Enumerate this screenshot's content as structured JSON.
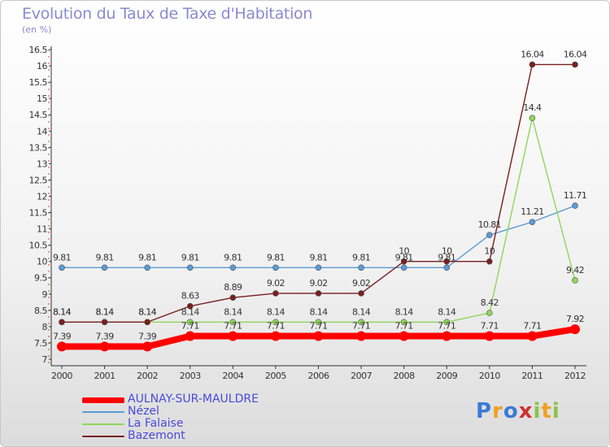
{
  "title": "Evolution du Taux de Taxe d'Habitation",
  "subtitle": "(en %)",
  "brand": "Proxiti",
  "chart_data": {
    "type": "line",
    "x": [
      "2000",
      "2001",
      "2002",
      "2003",
      "2004",
      "2005",
      "2006",
      "2007",
      "2008",
      "2009",
      "2010",
      "2011",
      "2012"
    ],
    "ylim": [
      7,
      16.5
    ],
    "yticks": [
      "7",
      "7.5",
      "8",
      "8.5",
      "9",
      "9.5",
      "10",
      "10.5",
      "11",
      "11.5",
      "12",
      "12.5",
      "13",
      "13.5",
      "14",
      "14.5",
      "15",
      "15.5",
      "16",
      "16.5"
    ],
    "grid": false,
    "legend_position": "bottom-left",
    "series": [
      {
        "name": "AULNAY-SUR-MAULDRE",
        "color": "#ff0000",
        "values": [
          7.39,
          7.39,
          7.39,
          7.71,
          7.71,
          7.71,
          7.71,
          7.71,
          7.71,
          7.71,
          7.71,
          7.71,
          7.92
        ],
        "labels": [
          "7.39",
          "7.39",
          "7.39",
          "7.71",
          "7.71",
          "7.71",
          "7.71",
          "7.71",
          "7.71",
          "7.71",
          "7.71",
          "7.71",
          "7.92"
        ]
      },
      {
        "name": "Nézel",
        "color": "#5b9bd5",
        "values": [
          9.81,
          9.81,
          9.81,
          9.81,
          9.81,
          9.81,
          9.81,
          9.81,
          9.81,
          9.81,
          10.81,
          11.21,
          11.71
        ],
        "labels": [
          "9.81",
          "9.81",
          "9.81",
          "9.81",
          "9.81",
          "9.81",
          "9.81",
          "9.81",
          "9.81",
          "9.81",
          "10.81",
          "11.21",
          "11.71"
        ]
      },
      {
        "name": "La Falaise",
        "color": "#8fd65a",
        "values": [
          8.14,
          8.14,
          8.14,
          8.14,
          8.14,
          8.14,
          8.14,
          8.14,
          8.14,
          8.14,
          8.42,
          14.4,
          9.42
        ],
        "labels": [
          "8.14",
          "8.14",
          "8.14",
          "8.14",
          "8.14",
          "8.14",
          "8.14",
          "8.14",
          "8.14",
          "8.14",
          "8.42",
          "14.4",
          "9.42"
        ]
      },
      {
        "name": "Bazemont",
        "color": "#7a1f1f",
        "values": [
          8.14,
          8.14,
          8.14,
          8.63,
          8.89,
          9.02,
          9.02,
          9.02,
          10,
          10,
          10,
          16.04,
          16.04
        ],
        "labels": [
          "8.14",
          "8.14",
          "8.14",
          "8.63",
          "8.89",
          "9.02",
          "9.02",
          "9.02",
          "10",
          "10",
          "10",
          "16.04",
          "16.04"
        ]
      }
    ]
  }
}
